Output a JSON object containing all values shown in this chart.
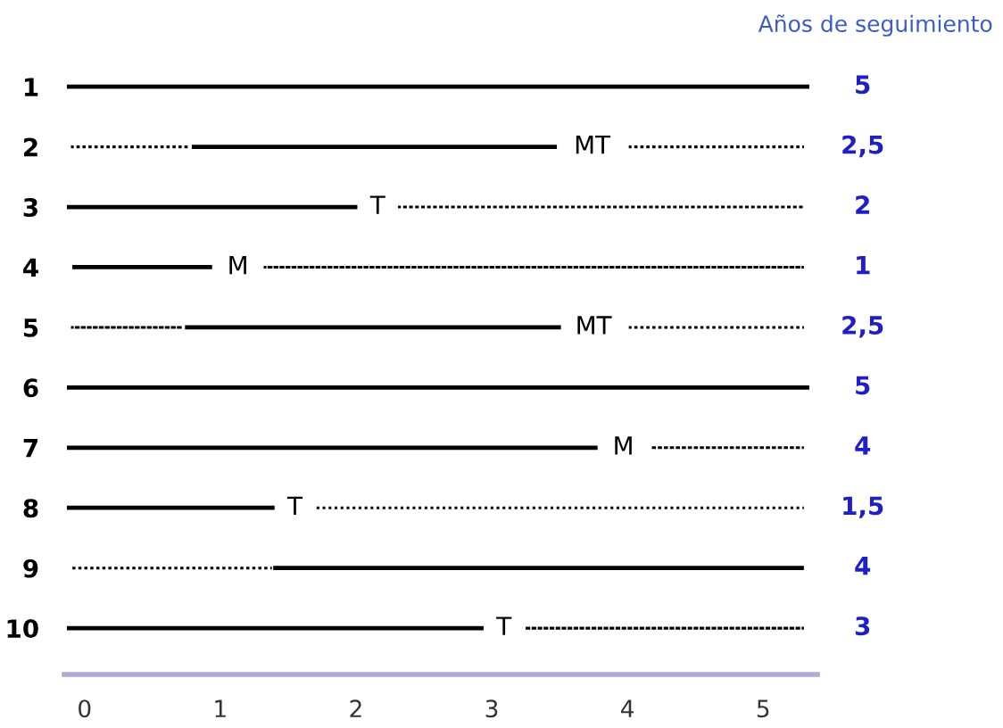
{
  "chart_data": {
    "type": "bar",
    "orientation": "horizontal",
    "title": "Años de seguimiento",
    "categories": [
      "1",
      "2",
      "3",
      "4",
      "5",
      "6",
      "7",
      "8",
      "9",
      "10"
    ],
    "xlim": [
      -0.15,
      5.4
    ],
    "xticks": [
      0,
      1,
      2,
      3,
      4,
      5
    ],
    "series": [
      {
        "line_style": "solid",
        "color": "#000000",
        "base": [
          -0.13,
          0.79,
          -0.13,
          -0.09,
          0.74,
          -0.13,
          -0.13,
          -0.13,
          1.39,
          -0.13
        ],
        "values": [
          5.47,
          2.69,
          2.14,
          1.03,
          2.77,
          5.47,
          3.91,
          1.53,
          3.91,
          3.07
        ]
      },
      {
        "line_style": "dotted",
        "color": "#000000",
        "base": [
          null,
          -0.1,
          null,
          null,
          -0.1,
          null,
          null,
          null,
          -0.09,
          null
        ],
        "values": [
          null,
          0.87,
          null,
          null,
          0.82,
          null,
          null,
          null,
          1.47,
          null
        ]
      },
      {
        "line_style": "dotted",
        "color": "#000000",
        "base": [
          null,
          4.01,
          2.31,
          1.32,
          4.01,
          null,
          4.18,
          1.71,
          null,
          3.25
        ],
        "values": [
          null,
          1.29,
          2.99,
          3.98,
          1.29,
          null,
          1.12,
          3.59,
          null,
          2.05
        ]
      }
    ],
    "annotations": [
      {
        "text": "MT",
        "x": 3.74,
        "y": "2"
      },
      {
        "text": "T",
        "x": 2.16,
        "y": "3"
      },
      {
        "text": "M",
        "x": 1.13,
        "y": "4"
      },
      {
        "text": "MT",
        "x": 3.75,
        "y": "5"
      },
      {
        "text": "M",
        "x": 3.97,
        "y": "7"
      },
      {
        "text": "T",
        "x": 1.55,
        "y": "8"
      },
      {
        "text": "T",
        "x": 3.09,
        "y": "10"
      },
      "5",
      "2,5",
      "2",
      "1",
      "2,5",
      "5",
      "4",
      "1,5",
      "4",
      "3"
    ]
  }
}
